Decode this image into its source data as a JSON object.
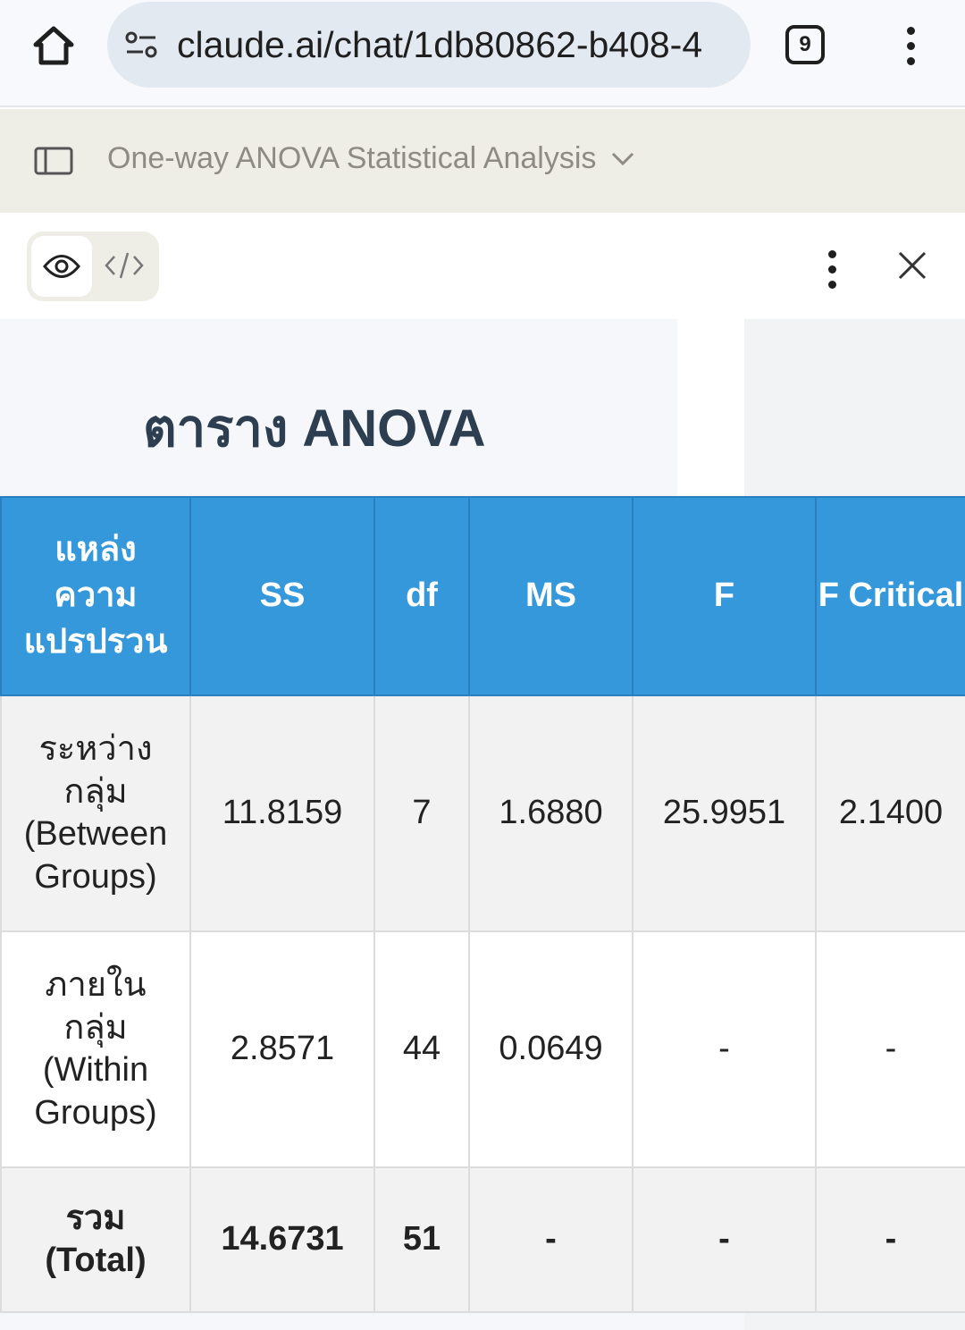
{
  "browser": {
    "url": "claude.ai/chat/1db80862-b408-4",
    "tab_count": "9"
  },
  "chat": {
    "title": "One-way ANOVA Statistical Analysis"
  },
  "artifact": {
    "heading": "ตาราง ANOVA"
  },
  "table": {
    "headers": [
      "แหล่งความแปรปรวน",
      "SS",
      "df",
      "MS",
      "F",
      "F Critical"
    ],
    "rows": [
      [
        "ระหว่างกลุ่ม (Between Groups)",
        "11.8159",
        "7",
        "1.6880",
        "25.9951",
        "2.1400"
      ],
      [
        "ภายในกลุ่ม (Within Groups)",
        "2.8571",
        "44",
        "0.0649",
        "-",
        "-"
      ],
      [
        "รวม (Total)",
        "14.6731",
        "51",
        "-",
        "-",
        "-"
      ]
    ]
  },
  "colors": {
    "header_bg": "#3498db",
    "heading": "#2c3e50",
    "chat_bar": "#eeede6"
  }
}
